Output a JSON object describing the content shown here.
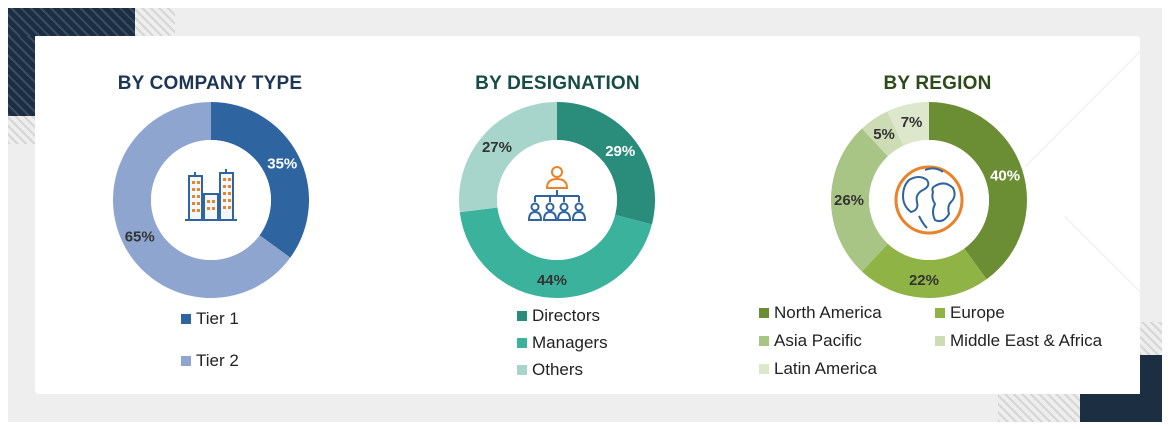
{
  "panels": [
    {
      "title": "BY COMPANY TYPE",
      "title_color": "#1d3656",
      "icon": "buildings-icon",
      "legend": [
        {
          "label": "Tier 1",
          "color": "#2e64a0"
        },
        {
          "label": "Tier 2",
          "color": "#8ea6cf"
        }
      ]
    },
    {
      "title": "BY DESIGNATION",
      "title_color": "#174c46",
      "icon": "org-hierarchy-icon",
      "legend": [
        {
          "label": "Directors",
          "color": "#2a8c7a"
        },
        {
          "label": "Managers",
          "color": "#3bb29c"
        },
        {
          "label": "Others",
          "color": "#a7d5cb"
        }
      ]
    },
    {
      "title": "BY REGION",
      "title_color": "#2e4a1a",
      "icon": "globe-icon",
      "legend": [
        {
          "label": "North America",
          "color": "#6b8e34"
        },
        {
          "label": "Europe",
          "color": "#8fb344"
        },
        {
          "label": "Asia Pacific",
          "color": "#a9c585"
        },
        {
          "label": "Middle East & Africa",
          "color": "#cddcb5"
        },
        {
          "label": "Latin America",
          "color": "#dde7cc"
        }
      ]
    }
  ],
  "chart_data": [
    {
      "type": "pie",
      "title": "BY COMPANY TYPE",
      "categories": [
        "Tier 1",
        "Tier 2"
      ],
      "values": [
        35,
        65
      ],
      "labels": [
        "35%",
        "65%"
      ],
      "colors": [
        "#2e64a0",
        "#8ea6cf"
      ]
    },
    {
      "type": "pie",
      "title": "BY DESIGNATION",
      "categories": [
        "Directors",
        "Managers",
        "Others"
      ],
      "values": [
        29,
        44,
        27
      ],
      "labels": [
        "29%",
        "44%",
        "27%"
      ],
      "colors": [
        "#2a8c7a",
        "#3bb29c",
        "#a7d5cb"
      ]
    },
    {
      "type": "pie",
      "title": "BY REGION",
      "categories": [
        "North America",
        "Europe",
        "Asia Pacific",
        "Middle East & Africa",
        "Latin America"
      ],
      "values": [
        40,
        22,
        26,
        5,
        7
      ],
      "labels": [
        "40%",
        "22%",
        "26%",
        "5%",
        "7%"
      ],
      "colors": [
        "#6b8e34",
        "#8fb344",
        "#a9c585",
        "#cddcb5",
        "#dde7cc"
      ]
    }
  ]
}
